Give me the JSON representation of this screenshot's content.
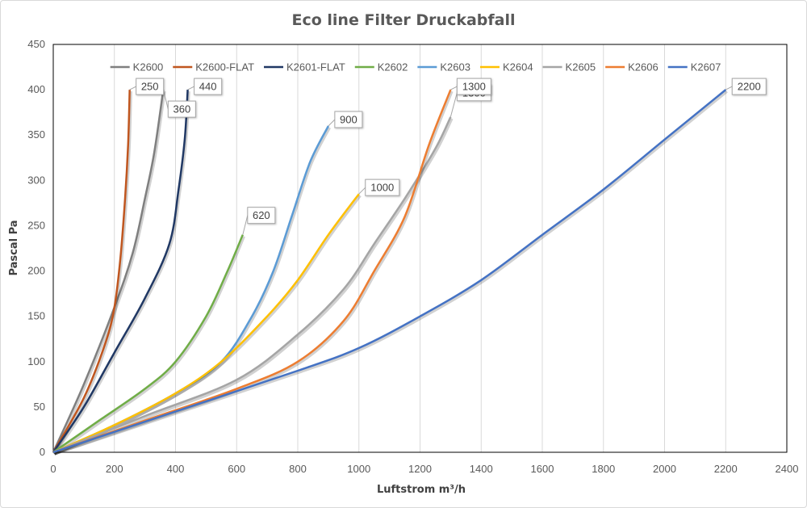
{
  "chart_data": {
    "type": "line",
    "title": "Eco line Filter Druckabfall",
    "xlabel": "Luftstrom m³/h",
    "ylabel": "Pascal Pa",
    "xlim": [
      0,
      2400
    ],
    "ylim": [
      0,
      450
    ],
    "xticks": [
      0,
      200,
      400,
      600,
      800,
      1000,
      1200,
      1400,
      1600,
      1800,
      2000,
      2200,
      2400
    ],
    "yticks": [
      0,
      50,
      100,
      150,
      200,
      250,
      300,
      350,
      400,
      450
    ],
    "grid": "vertical",
    "legend_position": "top",
    "series": [
      {
        "name": "K2600",
        "color": "#7f7f7f",
        "end_label": "360",
        "points": [
          [
            0,
            0
          ],
          [
            100,
            75
          ],
          [
            200,
            160
          ],
          [
            260,
            220
          ],
          [
            300,
            280
          ],
          [
            330,
            330
          ],
          [
            360,
            400
          ]
        ]
      },
      {
        "name": "K2600-FLAT",
        "color": "#c0561f",
        "end_label": "250",
        "points": [
          [
            0,
            0
          ],
          [
            100,
            60
          ],
          [
            170,
            120
          ],
          [
            200,
            160
          ],
          [
            220,
            215
          ],
          [
            235,
            280
          ],
          [
            245,
            340
          ],
          [
            250,
            400
          ]
        ]
      },
      {
        "name": "K2601-FLAT",
        "color": "#203864",
        "end_label": "440",
        "points": [
          [
            0,
            0
          ],
          [
            100,
            50
          ],
          [
            200,
            110
          ],
          [
            300,
            170
          ],
          [
            380,
            230
          ],
          [
            410,
            290
          ],
          [
            430,
            345
          ],
          [
            440,
            400
          ]
        ]
      },
      {
        "name": "K2602",
        "color": "#70ad47",
        "end_label": "620",
        "points": [
          [
            0,
            0
          ],
          [
            150,
            35
          ],
          [
            300,
            70
          ],
          [
            400,
            100
          ],
          [
            500,
            150
          ],
          [
            570,
            200
          ],
          [
            620,
            240
          ]
        ]
      },
      {
        "name": "K2603",
        "color": "#5b9bd5",
        "end_label": "900",
        "points": [
          [
            0,
            0
          ],
          [
            200,
            30
          ],
          [
            400,
            65
          ],
          [
            550,
            100
          ],
          [
            650,
            150
          ],
          [
            720,
            200
          ],
          [
            780,
            260
          ],
          [
            840,
            320
          ],
          [
            900,
            360
          ]
        ]
      },
      {
        "name": "K2604",
        "color": "#ffc000",
        "end_label": "1000",
        "points": [
          [
            0,
            0
          ],
          [
            200,
            30
          ],
          [
            400,
            65
          ],
          [
            550,
            100
          ],
          [
            700,
            150
          ],
          [
            800,
            190
          ],
          [
            900,
            240
          ],
          [
            1000,
            285
          ]
        ]
      },
      {
        "name": "K2605",
        "color": "#a5a5a5",
        "end_label": "1300",
        "points": [
          [
            0,
            0
          ],
          [
            300,
            40
          ],
          [
            600,
            80
          ],
          [
            800,
            130
          ],
          [
            950,
            180
          ],
          [
            1050,
            230
          ],
          [
            1150,
            280
          ],
          [
            1250,
            335
          ],
          [
            1300,
            370
          ]
        ]
      },
      {
        "name": "K2606",
        "color": "#ed7d31",
        "end_label": "1300",
        "points": [
          [
            0,
            0
          ],
          [
            300,
            35
          ],
          [
            600,
            70
          ],
          [
            800,
            100
          ],
          [
            950,
            145
          ],
          [
            1050,
            200
          ],
          [
            1150,
            260
          ],
          [
            1230,
            340
          ],
          [
            1300,
            400
          ]
        ]
      },
      {
        "name": "K2607",
        "color": "#4472c4",
        "end_label": "2200",
        "points": [
          [
            0,
            0
          ],
          [
            400,
            45
          ],
          [
            800,
            90
          ],
          [
            1000,
            115
          ],
          [
            1200,
            150
          ],
          [
            1400,
            190
          ],
          [
            1600,
            240
          ],
          [
            1800,
            290
          ],
          [
            2000,
            345
          ],
          [
            2200,
            400
          ]
        ]
      }
    ]
  }
}
